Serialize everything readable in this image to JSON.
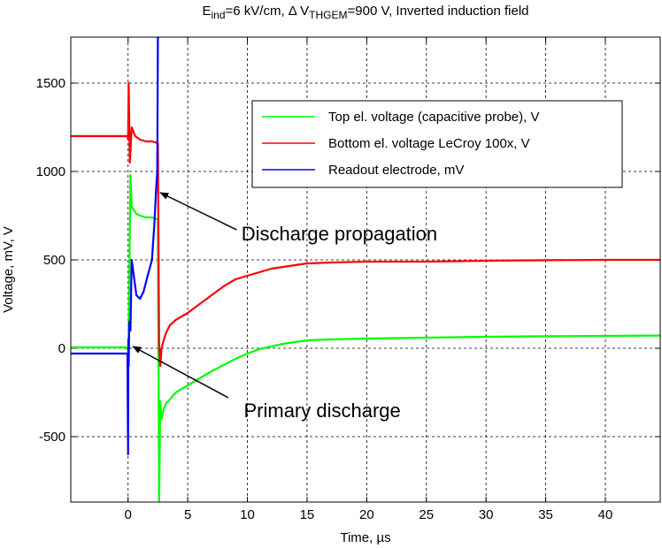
{
  "chart_data": {
    "type": "line",
    "title_parts": {
      "e_main": "E",
      "e_sub": "ind",
      "e_rest": "=6 kV/cm,  Δ V",
      "v_sub": "THGEM",
      "v_rest": "=900 V, Inverted induction field"
    },
    "xlabel": "Time, µs",
    "ylabel": "Voltage, mV, V",
    "xlim": [
      -4.8,
      44.6
    ],
    "ylim": [
      -870,
      1760
    ],
    "xticks": [
      0,
      5,
      10,
      15,
      20,
      25,
      30,
      35,
      40
    ],
    "yticks": [
      -500,
      0,
      500,
      1000,
      1500
    ],
    "grid": "dashed",
    "legend_position": "top-right",
    "series": [
      {
        "name": "Top el. voltage (capacitive probe), V",
        "color": "#00ff00",
        "x": [
          -4.8,
          -0.2,
          0,
          0.05,
          0.2,
          0.3,
          0.5,
          0.7,
          1.0,
          1.5,
          2.0,
          2.5,
          2.6,
          2.7,
          2.8,
          3.0,
          3.2,
          3.5,
          4,
          5,
          6,
          7,
          8,
          9,
          10,
          11,
          12,
          13,
          14,
          15,
          17,
          20,
          25,
          30,
          35,
          40,
          44.6
        ],
        "y": [
          5,
          5,
          -10,
          60,
          980,
          800,
          780,
          760,
          750,
          740,
          740,
          730,
          -880,
          -300,
          -400,
          -340,
          -310,
          -290,
          -250,
          -210,
          -170,
          -130,
          -95,
          -60,
          -30,
          -5,
          10,
          25,
          35,
          45,
          50,
          55,
          60,
          65,
          68,
          70,
          72
        ]
      },
      {
        "name": "Bottom el. voltage LeCroy 100x, V",
        "color": "#ff0000",
        "x": [
          -4.8,
          -0.2,
          -0.05,
          0,
          0.05,
          0.15,
          0.3,
          0.6,
          1.0,
          1.5,
          2.0,
          2.5,
          2.6,
          2.7,
          2.8,
          3.0,
          3.2,
          3.5,
          4,
          5,
          6,
          7,
          8,
          9,
          10,
          11,
          12,
          13,
          14,
          15,
          17,
          20,
          25,
          30,
          35,
          40,
          44.6
        ],
        "y": [
          1200,
          1200,
          1200,
          1180,
          1500,
          1050,
          1250,
          1200,
          1180,
          1170,
          1170,
          1160,
          20,
          -100,
          0,
          50,
          90,
          130,
          160,
          200,
          250,
          300,
          350,
          390,
          410,
          430,
          450,
          460,
          470,
          480,
          485,
          490,
          490,
          495,
          498,
          500,
          500
        ]
      },
      {
        "name": "Readout electrode, mV",
        "color": "#0000ff",
        "x": [
          -4.8,
          -0.2,
          -0.05,
          0,
          0.02,
          0.05,
          0.1,
          0.2,
          0.3,
          0.5,
          0.7,
          1.0,
          1.3,
          1.6,
          2.0,
          2.2,
          2.35,
          2.45,
          2.5,
          2.55,
          2.6
        ],
        "y": [
          -30,
          -30,
          -30,
          -600,
          50,
          -100,
          150,
          100,
          500,
          400,
          300,
          280,
          320,
          400,
          500,
          700,
          900,
          1000,
          1760,
          1760,
          1760
        ]
      }
    ],
    "annotations": [
      {
        "text": "Discharge propagation",
        "x": 9.5,
        "y": 610,
        "arrow_from": [
          9.1,
          670
        ],
        "arrow_to": [
          2.7,
          880
        ]
      },
      {
        "text": "Primary discharge",
        "x": 9.7,
        "y": -390,
        "arrow_from": [
          8.4,
          -280
        ],
        "arrow_to": [
          0.4,
          10
        ]
      }
    ]
  }
}
